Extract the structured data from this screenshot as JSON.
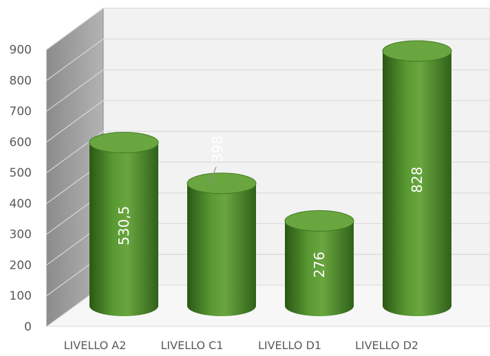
{
  "chart_data": {
    "type": "bar",
    "style": "3d-cylinder",
    "categories": [
      "LIVELLO A2",
      "LIVELLO C1",
      "LIVELLO D1",
      "LIVELLO D2"
    ],
    "values": [
      530.5,
      398,
      276,
      828
    ],
    "data_labels": [
      "530,5",
      "398",
      "276",
      "828"
    ],
    "ylim": [
      0,
      900
    ],
    "yticks": [
      "0",
      "100",
      "200",
      "300",
      "400",
      "500",
      "600",
      "700",
      "800",
      "900"
    ],
    "grid": true,
    "legend": "none",
    "title": "",
    "xlabel": "",
    "ylabel": ""
  },
  "colors": {
    "bar": "#3f7a22",
    "bar_light": "#6aa63f",
    "bar_dark": "#2a5714",
    "side_wall": "#a6a6a6",
    "back_wall": "#f2f2f2",
    "gridline": "#d9d9d9",
    "axis_text": "#595959"
  }
}
